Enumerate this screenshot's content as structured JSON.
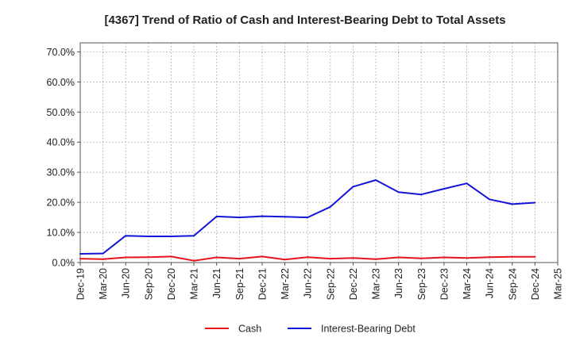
{
  "chart_data": {
    "type": "line",
    "title": "[4367]  Trend of Ratio of Cash and Interest-Bearing Debt to Total Assets",
    "xlabel": "",
    "ylabel": "",
    "ylim": [
      0,
      0.73
    ],
    "y_ticks": [
      0,
      0.1,
      0.2,
      0.3,
      0.4,
      0.5,
      0.6,
      0.7
    ],
    "y_tick_labels": [
      "0.0%",
      "10.0%",
      "20.0%",
      "30.0%",
      "40.0%",
      "50.0%",
      "60.0%",
      "70.0%"
    ],
    "categories": [
      "Dec-19",
      "Mar-20",
      "Jun-20",
      "Sep-20",
      "Dec-20",
      "Mar-21",
      "Jun-21",
      "Sep-21",
      "Dec-21",
      "Mar-22",
      "Jun-22",
      "Sep-22",
      "Dec-22",
      "Mar-23",
      "Jun-23",
      "Sep-23",
      "Dec-23",
      "Mar-24",
      "Jun-24",
      "Sep-24",
      "Dec-24",
      "Mar-25"
    ],
    "grid": true,
    "legend_position": "bottom",
    "series": [
      {
        "name": "Cash",
        "color": "#e8141b",
        "values": [
          1.3,
          1.1,
          1.7,
          1.8,
          2.0,
          0.6,
          1.7,
          1.3,
          2.0,
          1.0,
          1.8,
          1.3,
          1.5,
          1.1,
          1.7,
          1.4,
          1.7,
          1.5,
          1.8,
          1.9,
          1.9,
          null
        ]
      },
      {
        "name": "Interest-Bearing Debt",
        "color": "#1414d8",
        "values": [
          2.9,
          3.0,
          8.9,
          8.7,
          8.7,
          8.9,
          15.3,
          15.0,
          15.4,
          15.2,
          15.0,
          18.5,
          25.2,
          27.4,
          23.4,
          22.6,
          24.5,
          26.3,
          21.0,
          19.4,
          19.9,
          null
        ]
      }
    ]
  }
}
